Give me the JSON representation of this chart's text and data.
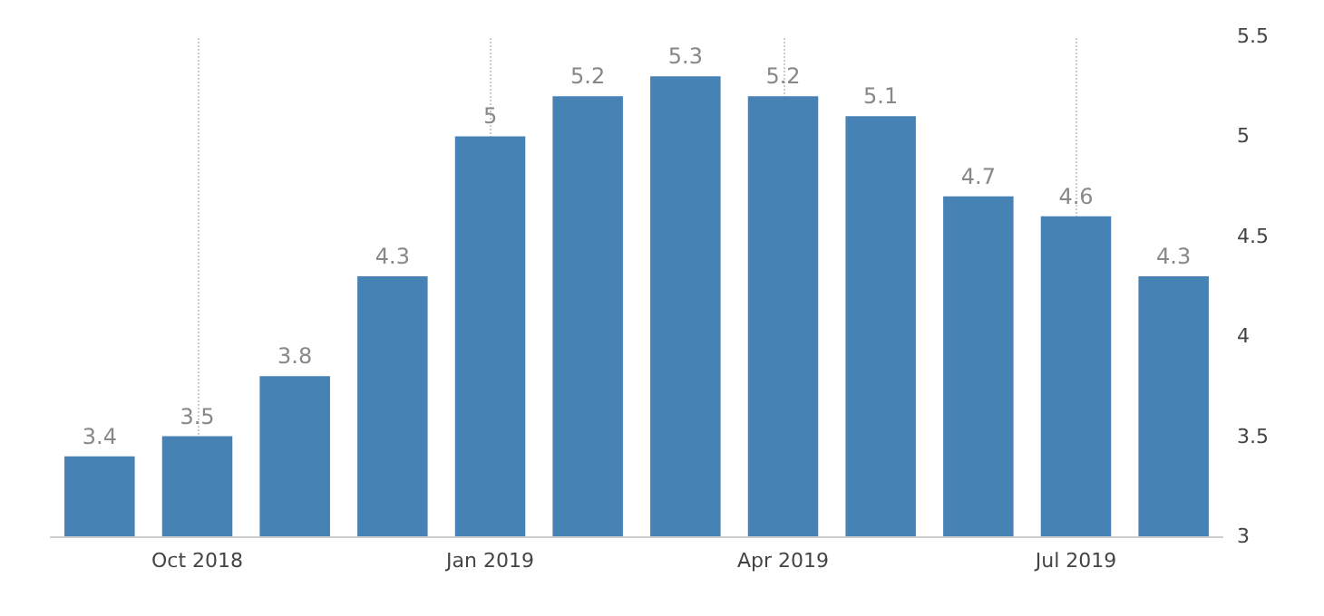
{
  "chart_data": {
    "type": "bar",
    "categories": [
      null,
      "Oct 2018",
      null,
      null,
      "Jan 2019",
      null,
      null,
      "Apr 2019",
      null,
      null,
      "Jul 2019",
      null
    ],
    "values": [
      3.4,
      3.5,
      3.8,
      4.3,
      5,
      5.2,
      5.3,
      5.2,
      5.1,
      4.7,
      4.6,
      4.3
    ],
    "color": "#4682b4",
    "ylim": [
      3,
      5.5
    ],
    "yticks": [
      3,
      3.5,
      4,
      4.5,
      5,
      5.5
    ],
    "grid": "x",
    "data_labels": true
  }
}
